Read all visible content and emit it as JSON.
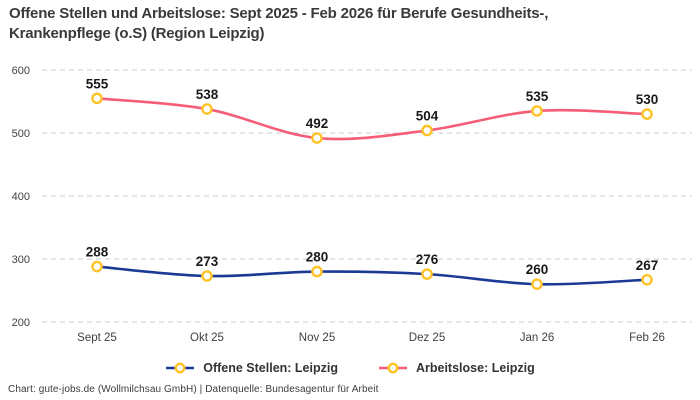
{
  "header": {
    "title_line1": "Offene Stellen und Arbeitslose: Sept 2025 - Feb 2026 für Berufe Gesundheits-,",
    "title_line2": "Krankenpflege (o.S) (Region Leipzig)"
  },
  "chart_data": {
    "type": "line",
    "title": "Offene Stellen und Arbeitslose: Sept 2025 - Feb 2026 für Berufe Gesundheits-, Krankenpflege (o.S) (Region Leipzig)",
    "categories": [
      "Sept 25",
      "Okt 25",
      "Nov 25",
      "Dez 25",
      "Jan 26",
      "Feb 26"
    ],
    "series": [
      {
        "name": "Offene Stellen: Leipzig",
        "values": [
          288,
          273,
          280,
          276,
          260,
          267
        ],
        "color": "#1D3996"
      },
      {
        "name": "Arbeitslose: Leipzig",
        "values": [
          555,
          538,
          492,
          504,
          535,
          530
        ],
        "color": "#F45C78"
      }
    ],
    "marker_color": "#FFC328",
    "grid_color": "#CCCCCC",
    "yticks": [
      200,
      300,
      400,
      500,
      600
    ],
    "ylim": [
      200,
      600
    ],
    "xlabel": "",
    "ylabel": "",
    "grid": "horizontal-dashed",
    "legend_position": "bottom",
    "data_labels": true
  },
  "footer": {
    "text": "Chart: gute-jobs.de (Wollmilchsau GmbH) | Datenquelle: Bundesagentur für Arbeit"
  }
}
